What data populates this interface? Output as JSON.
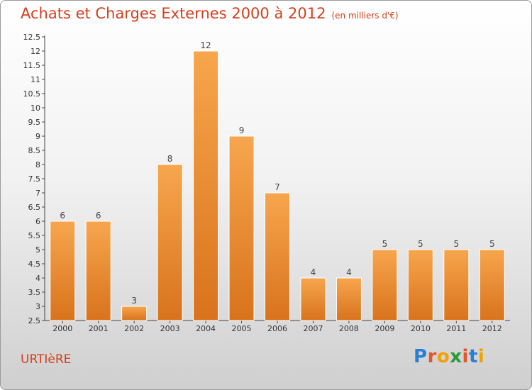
{
  "title": "Achats et Charges Externes 2000 à 2012",
  "unit": "(en milliers d'€)",
  "commune": "URTIèRE",
  "logo": {
    "letters": [
      "P",
      "r",
      "o",
      "x",
      "i",
      "t",
      "i"
    ],
    "colors": [
      "#2a7fd4",
      "#e8532a",
      "#f2a100",
      "#2a9a3c",
      "#e8532a",
      "#2a7fd4",
      "#f2a100"
    ]
  },
  "chart_data": {
    "type": "bar",
    "categories": [
      "2000",
      "2001",
      "2002",
      "2003",
      "2004",
      "2005",
      "2006",
      "2007",
      "2008",
      "2009",
      "2010",
      "2011",
      "2012"
    ],
    "values": [
      6,
      6,
      3,
      8,
      12,
      9,
      7,
      4,
      4,
      5,
      5,
      5,
      5
    ],
    "ylim": [
      2.5,
      12.5
    ],
    "yticks": [
      "2.5",
      "3",
      "3.5",
      "4",
      "4.5",
      "5",
      "5.5",
      "6",
      "6.5",
      "7",
      "7.5",
      "8",
      "8.5",
      "9",
      "9.5",
      "10",
      "10.5",
      "11",
      "11.5",
      "12",
      "12.5"
    ],
    "grid": false,
    "colors": {
      "bar_top": "#f7a64e",
      "bar_bottom": "#d8731c",
      "text": "#d2401e"
    }
  }
}
